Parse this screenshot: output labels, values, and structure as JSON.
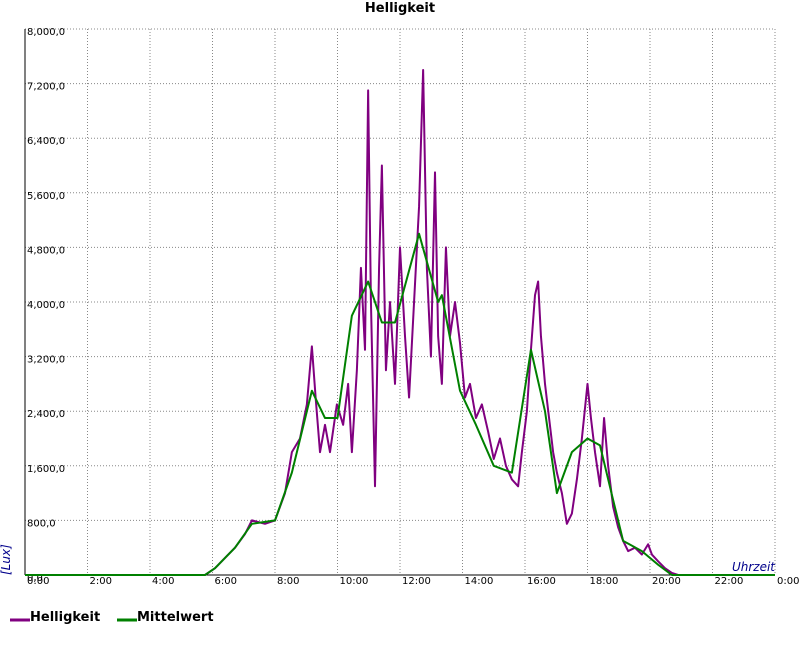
{
  "chart_data": {
    "type": "line",
    "title": "Helligkeit",
    "x_label": "Uhrzeit",
    "y_label": "[Lux]",
    "xlim": [
      0,
      24
    ],
    "ylim": [
      0,
      8000
    ],
    "xticks": [
      {
        "value": 0,
        "label": "0:00"
      },
      {
        "value": 2,
        "label": "2:00"
      },
      {
        "value": 4,
        "label": "4:00"
      },
      {
        "value": 6,
        "label": "6:00"
      },
      {
        "value": 8,
        "label": "8:00"
      },
      {
        "value": 10,
        "label": "10:00"
      },
      {
        "value": 12,
        "label": "12:00"
      },
      {
        "value": 14,
        "label": "14:00"
      },
      {
        "value": 16,
        "label": "16:00"
      },
      {
        "value": 18,
        "label": "18:00"
      },
      {
        "value": 20,
        "label": "20:00"
      },
      {
        "value": 22,
        "label": "22:00"
      },
      {
        "value": 24,
        "label": "0:00"
      }
    ],
    "yticks": [
      {
        "value": 0,
        "label": "0,0"
      },
      {
        "value": 800,
        "label": "800,0"
      },
      {
        "value": 1600,
        "label": "1,600,0"
      },
      {
        "value": 2400,
        "label": "2,400,0"
      },
      {
        "value": 3200,
        "label": "3,200,0"
      },
      {
        "value": 4000,
        "label": "4,000,0"
      },
      {
        "value": 4800,
        "label": "4,800,0"
      },
      {
        "value": 5600,
        "label": "5,600,0"
      },
      {
        "value": 6400,
        "label": "6,400,0"
      },
      {
        "value": 7200,
        "label": "7,200,0"
      },
      {
        "value": 8000,
        "label": "8,000,0"
      }
    ],
    "grid": true,
    "series": [
      {
        "name": "Helligkeit",
        "color": "#800080",
        "x": [
          0,
          5.76,
          6.08,
          6.4,
          6.72,
          7.04,
          7.26,
          7.68,
          8.0,
          8.32,
          8.54,
          8.8,
          9.02,
          9.18,
          9.3,
          9.44,
          9.6,
          9.76,
          9.98,
          10.18,
          10.34,
          10.46,
          10.62,
          10.75,
          10.88,
          10.98,
          11.07,
          11.2,
          11.33,
          11.42,
          11.55,
          11.68,
          11.84,
          12.0,
          12.16,
          12.29,
          12.45,
          12.61,
          12.74,
          12.86,
          12.99,
          13.12,
          13.22,
          13.34,
          13.47,
          13.6,
          13.76,
          13.92,
          14.08,
          14.24,
          14.43,
          14.62,
          14.82,
          15.0,
          15.2,
          15.39,
          15.58,
          15.78,
          15.9,
          16.06,
          16.19,
          16.32,
          16.42,
          16.51,
          16.64,
          16.77,
          16.9,
          17.02,
          17.18,
          17.34,
          17.5,
          17.66,
          17.82,
          18.0,
          18.11,
          18.24,
          18.4,
          18.53,
          18.66,
          18.82,
          18.98,
          19.14,
          19.3,
          19.52,
          19.74,
          19.94,
          20.06,
          20.26,
          20.48,
          20.7,
          20.9,
          24
        ],
        "values": [
          0,
          0,
          100,
          250,
          400,
          600,
          800,
          750,
          800,
          1200,
          1800,
          2000,
          2500,
          3350,
          2600,
          1800,
          2200,
          1800,
          2500,
          2200,
          2800,
          1800,
          3000,
          4500,
          3300,
          7100,
          4000,
          1300,
          4500,
          6000,
          3000,
          4000,
          2800,
          4800,
          3500,
          2600,
          4000,
          5400,
          7400,
          4500,
          3200,
          5900,
          3500,
          2800,
          4800,
          3500,
          4000,
          3400,
          2600,
          2800,
          2300,
          2500,
          2100,
          1700,
          2000,
          1600,
          1400,
          1300,
          1800,
          2400,
          3300,
          4100,
          4300,
          3500,
          2800,
          2300,
          1800,
          1500,
          1200,
          750,
          900,
          1400,
          2000,
          2800,
          2300,
          1800,
          1300,
          2300,
          1600,
          1000,
          700,
          500,
          350,
          400,
          300,
          450,
          300,
          200,
          100,
          30,
          0,
          0
        ]
      },
      {
        "name": "Mittelwert",
        "color": "#008000",
        "x": [
          0,
          5.76,
          6.08,
          6.72,
          7.26,
          8.0,
          8.54,
          9.18,
          9.6,
          10.0,
          10.46,
          10.98,
          11.42,
          11.84,
          12.61,
          13.22,
          13.34,
          13.92,
          14.43,
          15.0,
          15.58,
          16.19,
          16.64,
          17.02,
          17.5,
          18.0,
          18.4,
          18.82,
          19.14,
          19.74,
          20.26,
          20.7,
          24
        ],
        "values": [
          0,
          0,
          100,
          400,
          750,
          800,
          1500,
          2700,
          2300,
          2300,
          3800,
          4300,
          3700,
          3700,
          5000,
          4000,
          4100,
          2700,
          2200,
          1600,
          1500,
          3300,
          2400,
          1200,
          1800,
          2000,
          1900,
          1100,
          500,
          350,
          150,
          0,
          0
        ]
      }
    ]
  }
}
